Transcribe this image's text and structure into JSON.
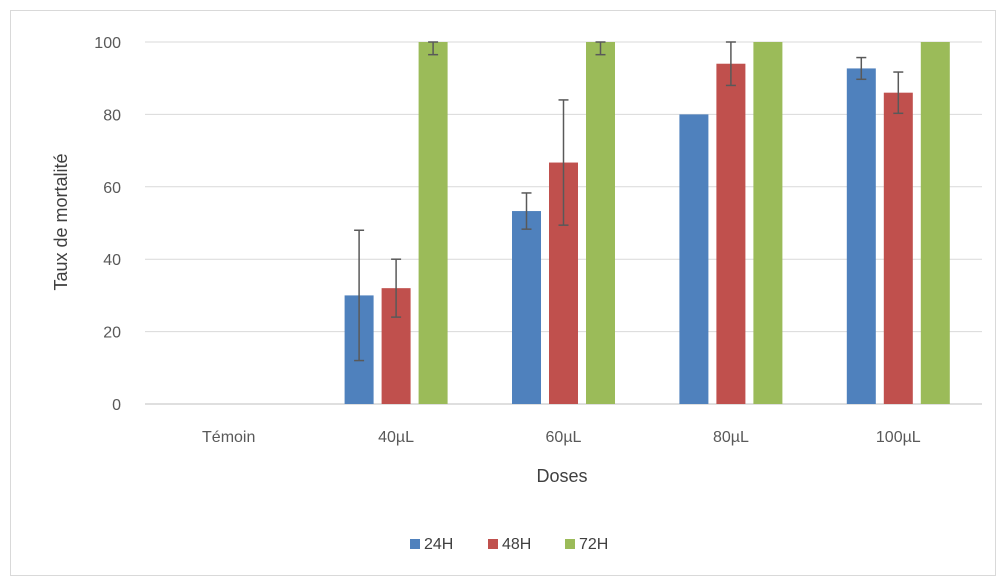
{
  "chart_data": {
    "type": "bar",
    "title": "",
    "xlabel": "Doses",
    "ylabel": "Taux de mortalité",
    "categories": [
      "Témoin",
      "40µL",
      "60µL",
      "80µL",
      "100µL"
    ],
    "ylim": [
      0,
      100
    ],
    "yticks": [
      0,
      20,
      40,
      60,
      80,
      100
    ],
    "grid": true,
    "legend_position": "bottom",
    "series": [
      {
        "name": "24H",
        "color": "#4f81bd",
        "values": [
          0,
          30,
          53.3,
          80,
          92.7
        ],
        "errors": [
          0,
          18,
          5,
          0,
          3
        ]
      },
      {
        "name": "48H",
        "color": "#c0504d",
        "values": [
          0,
          32,
          66.7,
          94,
          86
        ],
        "errors": [
          0,
          8,
          17.3,
          6,
          5.7
        ]
      },
      {
        "name": "72H",
        "color": "#9bbb59",
        "values": [
          0,
          100,
          100,
          100,
          100
        ],
        "errors": [
          0,
          3.5,
          3.5,
          0,
          0
        ]
      }
    ]
  }
}
